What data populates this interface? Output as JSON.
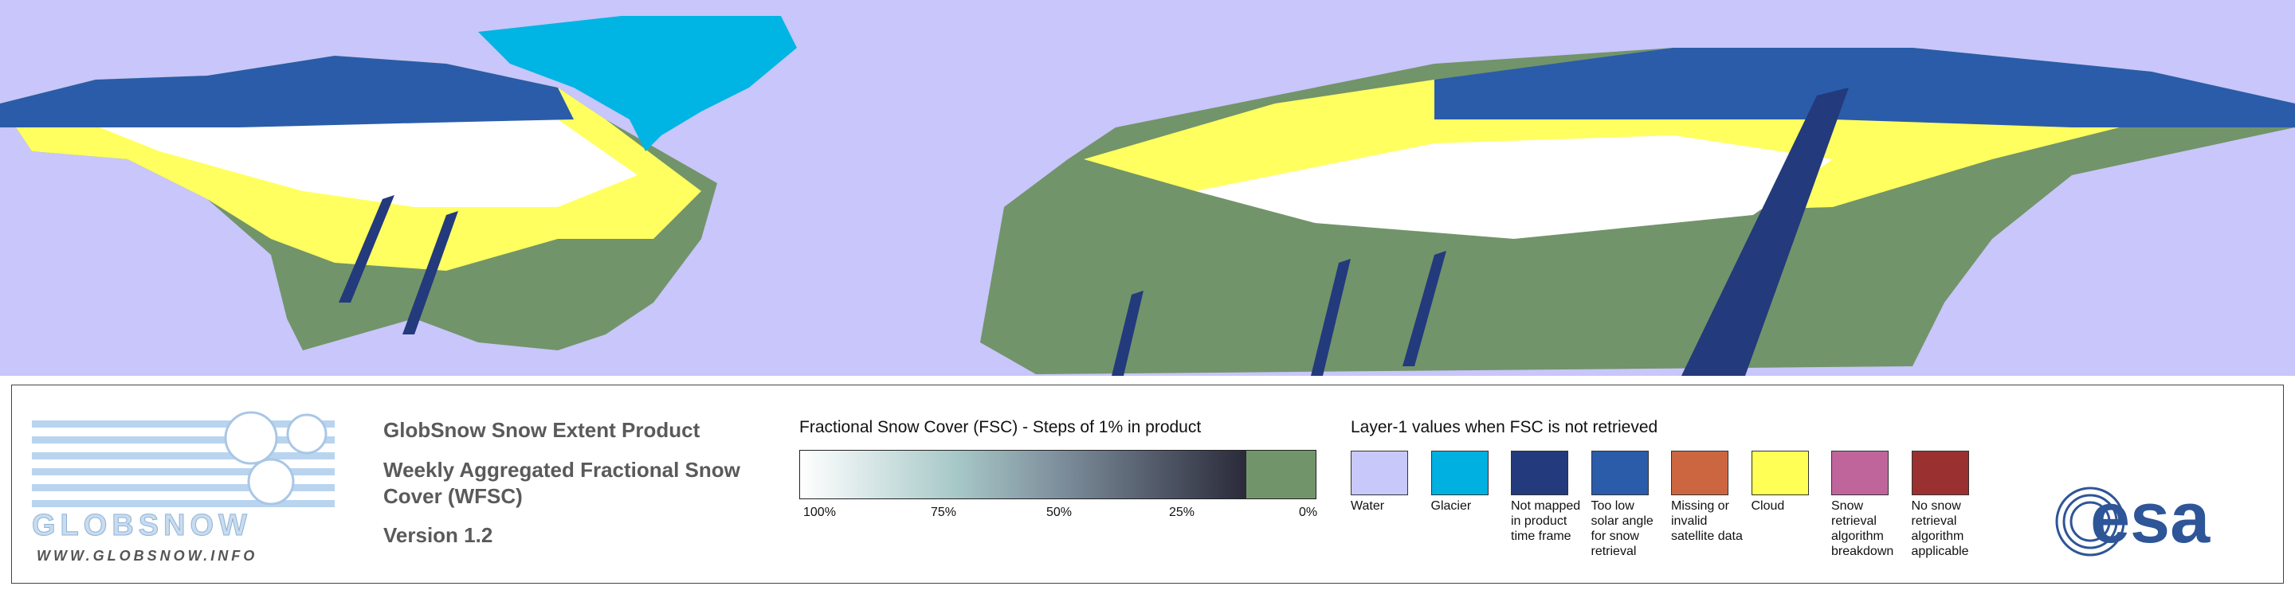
{
  "logo": {
    "name": "GLOBSNOW",
    "url": "WWW.GLOBSNOW.INFO"
  },
  "product": {
    "title": "GlobSnow Snow Extent Product",
    "subtitle": "Weekly Aggregated Fractional Snow Cover (WFSC)",
    "version": "Version 1.2"
  },
  "fsc_legend": {
    "title": "Fractional Snow Cover (FSC) - Steps of 1% in product",
    "ticks": [
      "100%",
      "75%",
      "50%",
      "25%",
      "0%"
    ]
  },
  "layer1_legend": {
    "title": "Layer-1 values when FSC is not retrieved",
    "items": [
      {
        "label": "Water",
        "color": "#c9c8fb"
      },
      {
        "label": "Glacier",
        "color": "#00b0e0"
      },
      {
        "label": "Not mapped in product time frame",
        "color": "#233a7c"
      },
      {
        "label": "Too low solar angle for snow retrieval",
        "color": "#2a5caa"
      },
      {
        "label": "Missing or invalid satellite data",
        "color": "#cc6640"
      },
      {
        "label": "Cloud",
        "color": "#ffff55"
      },
      {
        "label": "Snow retrieval algorithm breakdown",
        "color": "#c0659c"
      },
      {
        "label": "No snow retrieval algorithm applicable",
        "color": "#9b3030"
      }
    ]
  },
  "esa_logo": "esa"
}
